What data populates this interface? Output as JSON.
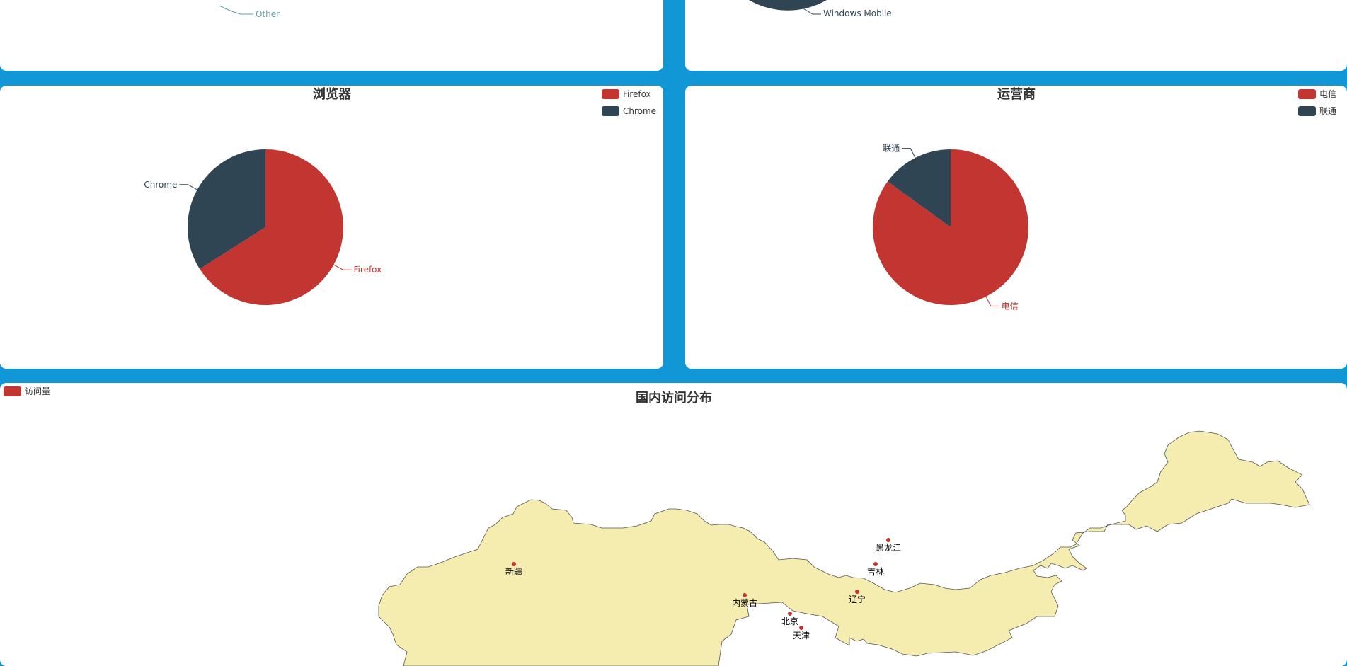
{
  "colors": {
    "background": "#1197d6",
    "panel": "#ffffff",
    "red": "#c23531",
    "dark": "#2f4554",
    "teal": "#61a0a8",
    "map_fill": "#f5edb0",
    "map_stroke": "#555555"
  },
  "top_left_fragment": {
    "label": "Other"
  },
  "top_right_fragment": {
    "label": "Windows Mobile"
  },
  "chart_data": [
    {
      "type": "pie",
      "title": "浏览器",
      "legend_position": "top-right",
      "categories": [
        "Firefox",
        "Chrome"
      ],
      "values": [
        66,
        34
      ]
    },
    {
      "type": "pie",
      "title": "运营商",
      "legend_position": "top-right",
      "categories": [
        "电信",
        "联通"
      ],
      "values": [
        85,
        15
      ]
    },
    {
      "type": "map",
      "title": "国内访问分布",
      "legend_position": "top-left",
      "series": [
        {
          "name": "访问量"
        }
      ],
      "regions": [
        "新疆",
        "内蒙古",
        "黑龙江",
        "吉林",
        "辽宁",
        "北京",
        "天津"
      ]
    }
  ]
}
